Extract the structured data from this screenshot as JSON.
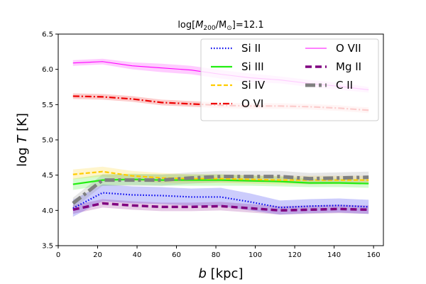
{
  "chart_data": {
    "type": "line",
    "title_main": "log[",
    "title_math": "M",
    "title_sub": "200",
    "title_rest": "/M",
    "title_sun": "⊙",
    "title_end": "]=12.1",
    "xlabel_math": "b",
    "xlabel_rest": " [kpc]",
    "ylabel_pre": "log ",
    "ylabel_math": "T",
    "ylabel_rest": " [K]",
    "xlim": [
      0,
      165
    ],
    "ylim": [
      3.5,
      6.5
    ],
    "xticks": [
      0,
      20,
      40,
      60,
      80,
      100,
      120,
      140,
      160
    ],
    "yticks": [
      3.5,
      4.0,
      4.5,
      5.0,
      5.5,
      6.0,
      6.5
    ],
    "x": [
      7.5,
      22.5,
      37.5,
      52.5,
      67.5,
      82.5,
      97.5,
      112.5,
      127.5,
      142.5,
      157.5
    ],
    "legend_position": "upper-right",
    "series": [
      {
        "name": "Si II",
        "color": "#0000ee",
        "style": "dotted",
        "width": 2.2,
        "values": [
          4.03,
          4.25,
          4.22,
          4.21,
          4.19,
          4.19,
          4.12,
          4.04,
          4.06,
          4.07,
          4.05
        ],
        "band": [
          0.12,
          0.12,
          0.12,
          0.12,
          0.12,
          0.13,
          0.12,
          0.1,
          0.1,
          0.1,
          0.1
        ]
      },
      {
        "name": "Si III",
        "color": "#22ee11",
        "style": "solid",
        "width": 2.2,
        "values": [
          4.37,
          4.43,
          4.44,
          4.43,
          4.43,
          4.43,
          4.42,
          4.41,
          4.39,
          4.39,
          4.38
        ],
        "band": [
          0.08,
          0.08,
          0.08,
          0.08,
          0.08,
          0.08,
          0.07,
          0.07,
          0.06,
          0.06,
          0.06
        ]
      },
      {
        "name": "Si IV",
        "color": "#ffcc00",
        "style": "dashed",
        "width": 2.2,
        "values": [
          4.51,
          4.55,
          4.49,
          4.46,
          4.45,
          4.45,
          4.44,
          4.43,
          4.43,
          4.43,
          4.43
        ],
        "band": [
          0.07,
          0.07,
          0.07,
          0.07,
          0.06,
          0.06,
          0.06,
          0.06,
          0.06,
          0.06,
          0.06
        ]
      },
      {
        "name": "O VI",
        "color": "#ee0000",
        "style": "dashdot",
        "width": 2.2,
        "values": [
          5.62,
          5.61,
          5.58,
          5.53,
          5.51,
          5.49,
          5.48,
          5.48,
          5.47,
          5.45,
          5.42
        ],
        "band": [
          0.04,
          0.04,
          0.04,
          0.04,
          0.04,
          0.04,
          0.04,
          0.04,
          0.04,
          0.04,
          0.04
        ]
      },
      {
        "name": "O VII",
        "color": "#ff00ff",
        "style": "solid",
        "width": 1.1,
        "values": [
          6.09,
          6.11,
          6.05,
          6.02,
          5.99,
          5.93,
          5.88,
          5.85,
          5.8,
          5.76,
          5.71
        ],
        "band": [
          0.04,
          0.04,
          0.05,
          0.06,
          0.06,
          0.06,
          0.06,
          0.05,
          0.05,
          0.05,
          0.04
        ]
      },
      {
        "name": "Mg II",
        "color": "#800080",
        "style": "dashed",
        "width": 3.5,
        "values": [
          4.01,
          4.1,
          4.07,
          4.05,
          4.05,
          4.06,
          4.03,
          4.0,
          4.01,
          4.02,
          4.01
        ],
        "band": [
          0.06,
          0.06,
          0.06,
          0.06,
          0.06,
          0.06,
          0.06,
          0.06,
          0.06,
          0.06,
          0.06
        ]
      },
      {
        "name": "C II",
        "color": "#808080",
        "style": "dashdot",
        "width": 5,
        "values": [
          4.1,
          4.43,
          4.43,
          4.43,
          4.46,
          4.48,
          4.48,
          4.48,
          4.45,
          4.46,
          4.47
        ],
        "band": [
          0.08,
          0.08,
          0.08,
          0.08,
          0.08,
          0.08,
          0.08,
          0.08,
          0.08,
          0.08,
          0.08
        ]
      }
    ]
  }
}
